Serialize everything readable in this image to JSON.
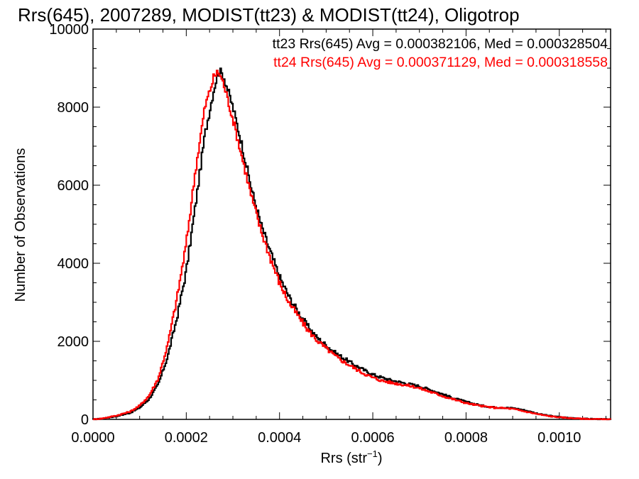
{
  "chart_data": {
    "type": "line",
    "style": "step-histogram",
    "title": "Rrs(645), 2007289, MODIST(tt23) & MODIST(tt24), Oligotrop",
    "xlabel": "Rrs (str",
    "xlabel_sup": "−1",
    "xlabel_end": ")",
    "ylabel": "Number of Observations",
    "xlim": [
      0.0,
      0.00111
    ],
    "ylim": [
      0,
      10000
    ],
    "x_ticks": [
      "0.0000",
      "0.0002",
      "0.0004",
      "0.0006",
      "0.0008",
      "0.0010"
    ],
    "x_tick_values": [
      0.0,
      0.0002,
      0.0004,
      0.0006,
      0.0008,
      0.001
    ],
    "y_ticks": [
      "0",
      "2000",
      "4000",
      "6000",
      "8000",
      "10000"
    ],
    "y_tick_values": [
      0,
      2000,
      4000,
      6000,
      8000,
      10000
    ],
    "grid": false,
    "legend_position": "top-right",
    "series": [
      {
        "name": "tt23 Rrs(645) Avg = 0.000382106, Med = 0.000328504",
        "color": "#000000",
        "points": [
          [
            0.0,
            0
          ],
          [
            2e-05,
            20
          ],
          [
            5e-05,
            80
          ],
          [
            8e-05,
            170
          ],
          [
            0.0001,
            300
          ],
          [
            0.00012,
            520
          ],
          [
            0.00014,
            900
          ],
          [
            0.00016,
            1600
          ],
          [
            0.00018,
            2600
          ],
          [
            0.0002,
            3800
          ],
          [
            0.00022,
            5500
          ],
          [
            0.00024,
            7300
          ],
          [
            0.00026,
            8500
          ],
          [
            0.00027,
            8950
          ],
          [
            0.00028,
            8800
          ],
          [
            0.0003,
            8000
          ],
          [
            0.00032,
            7000
          ],
          [
            0.00034,
            5900
          ],
          [
            0.00036,
            5000
          ],
          [
            0.00038,
            4300
          ],
          [
            0.0004,
            3650
          ],
          [
            0.00042,
            3150
          ],
          [
            0.00044,
            2750
          ],
          [
            0.00046,
            2400
          ],
          [
            0.00048,
            2100
          ],
          [
            0.0005,
            1900
          ],
          [
            0.00052,
            1700
          ],
          [
            0.00054,
            1550
          ],
          [
            0.00056,
            1400
          ],
          [
            0.00058,
            1270
          ],
          [
            0.0006,
            1150
          ],
          [
            0.00062,
            1070
          ],
          [
            0.00064,
            1000
          ],
          [
            0.00066,
            950
          ],
          [
            0.00068,
            900
          ],
          [
            0.0007,
            850
          ],
          [
            0.00072,
            770
          ],
          [
            0.00074,
            690
          ],
          [
            0.00076,
            600
          ],
          [
            0.00078,
            520
          ],
          [
            0.0008,
            450
          ],
          [
            0.00082,
            390
          ],
          [
            0.00084,
            340
          ],
          [
            0.00086,
            310
          ],
          [
            0.00088,
            300
          ],
          [
            0.0009,
            290
          ],
          [
            0.00092,
            250
          ],
          [
            0.00094,
            190
          ],
          [
            0.00096,
            130
          ],
          [
            0.00098,
            90
          ],
          [
            0.001,
            60
          ],
          [
            0.00102,
            40
          ],
          [
            0.00104,
            25
          ],
          [
            0.00106,
            15
          ],
          [
            0.00108,
            8
          ],
          [
            0.0011,
            5
          ]
        ]
      },
      {
        "name": "tt24 Rrs(645) Avg = 0.000371129, Med = 0.000318558",
        "color": "#ff0000",
        "points": [
          [
            0.0,
            0
          ],
          [
            2e-05,
            25
          ],
          [
            5e-05,
            95
          ],
          [
            8e-05,
            200
          ],
          [
            0.0001,
            350
          ],
          [
            0.00012,
            600
          ],
          [
            0.00014,
            1050
          ],
          [
            0.00016,
            1900
          ],
          [
            0.00018,
            3100
          ],
          [
            0.0002,
            4500
          ],
          [
            0.00022,
            6400
          ],
          [
            0.00024,
            8000
          ],
          [
            0.00026,
            8800
          ],
          [
            0.00027,
            8900
          ],
          [
            0.00028,
            8600
          ],
          [
            0.0003,
            7700
          ],
          [
            0.00032,
            6700
          ],
          [
            0.00034,
            5700
          ],
          [
            0.00036,
            4850
          ],
          [
            0.00038,
            4150
          ],
          [
            0.0004,
            3500
          ],
          [
            0.00042,
            3000
          ],
          [
            0.00044,
            2650
          ],
          [
            0.00046,
            2300
          ],
          [
            0.00048,
            2030
          ],
          [
            0.0005,
            1820
          ],
          [
            0.00052,
            1620
          ],
          [
            0.00054,
            1460
          ],
          [
            0.00056,
            1320
          ],
          [
            0.00058,
            1180
          ],
          [
            0.0006,
            1070
          ],
          [
            0.00062,
            990
          ],
          [
            0.00064,
            940
          ],
          [
            0.00066,
            900
          ],
          [
            0.00068,
            860
          ],
          [
            0.0007,
            800
          ],
          [
            0.00072,
            720
          ],
          [
            0.00074,
            640
          ],
          [
            0.00076,
            560
          ],
          [
            0.00078,
            490
          ],
          [
            0.0008,
            420
          ],
          [
            0.00082,
            370
          ],
          [
            0.00084,
            330
          ],
          [
            0.00086,
            300
          ],
          [
            0.00088,
            290
          ],
          [
            0.0009,
            270
          ],
          [
            0.00092,
            220
          ],
          [
            0.00094,
            170
          ],
          [
            0.00096,
            120
          ],
          [
            0.00098,
            80
          ],
          [
            0.001,
            55
          ],
          [
            0.00102,
            35
          ],
          [
            0.00104,
            22
          ],
          [
            0.00106,
            12
          ],
          [
            0.00108,
            6
          ],
          [
            0.0011,
            4
          ]
        ]
      }
    ]
  }
}
